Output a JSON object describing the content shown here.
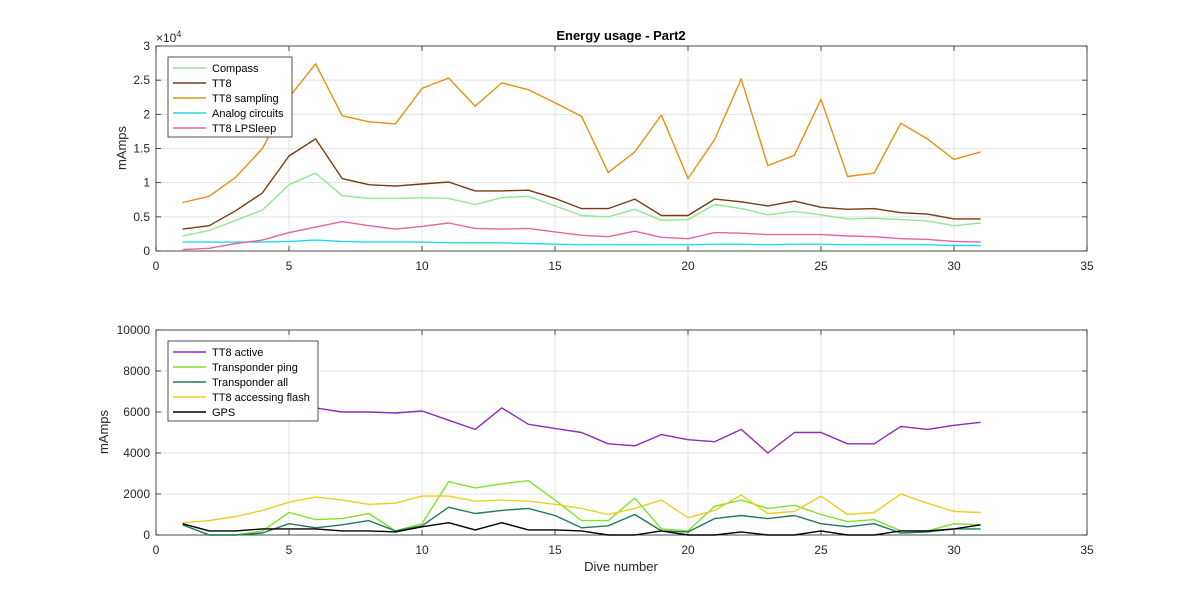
{
  "chart_data": [
    {
      "type": "line",
      "title": "Energy usage - Part2",
      "xlabel": "",
      "ylabel": "mAmps",
      "y_exponent_label": "×10",
      "y_exponent": "4",
      "xlim": [
        0,
        35
      ],
      "ylim": [
        0,
        30000
      ],
      "x_ticks": [
        0,
        5,
        10,
        15,
        20,
        25,
        30,
        35
      ],
      "y_ticks": [
        0,
        5000,
        10000,
        15000,
        20000,
        25000,
        30000
      ],
      "y_tick_labels": [
        "0",
        "0.5",
        "1",
        "1.5",
        "2",
        "2.5",
        "3"
      ],
      "grid": true,
      "legend_position": "top-left",
      "x": [
        1,
        2,
        3,
        4,
        5,
        6,
        7,
        8,
        9,
        10,
        11,
        12,
        13,
        14,
        15,
        16,
        17,
        18,
        19,
        20,
        21,
        22,
        23,
        24,
        25,
        26,
        27,
        28,
        29,
        30,
        31
      ],
      "series": [
        {
          "name": "Compass",
          "color": "#8fe88f",
          "values": [
            2200,
            3000,
            4500,
            6000,
            9700,
            11400,
            8100,
            7700,
            7700,
            7800,
            7700,
            6800,
            7800,
            8000,
            6600,
            5200,
            5000,
            6100,
            4500,
            4600,
            6800,
            6200,
            5300,
            5800,
            5300,
            4700,
            4800,
            4600,
            4400,
            3700,
            4100
          ]
        },
        {
          "name": "TT8",
          "color": "#7a3a12",
          "values": [
            3200,
            3700,
            5900,
            8500,
            13900,
            16400,
            10600,
            9700,
            9500,
            9800,
            10100,
            8800,
            8800,
            8900,
            7700,
            6200,
            6200,
            7600,
            5200,
            5200,
            7600,
            7200,
            6600,
            7300,
            6400,
            6100,
            6200,
            5600,
            5400,
            4700,
            4700
          ]
        },
        {
          "name": "TT8 sampling",
          "color": "#e8900e",
          "values": [
            7100,
            8000,
            10800,
            15000,
            22500,
            27400,
            19800,
            18900,
            18600,
            23800,
            25300,
            21200,
            24600,
            23600,
            21700,
            19700,
            11500,
            14500,
            19900,
            10600,
            16300,
            25200,
            12500,
            14000,
            22200,
            10900,
            11400,
            18700,
            16400,
            13400,
            14500
          ]
        },
        {
          "name": "Analog circuits",
          "color": "#25d9e8",
          "values": [
            1300,
            1300,
            1300,
            1300,
            1400,
            1600,
            1400,
            1300,
            1300,
            1300,
            1200,
            1200,
            1200,
            1100,
            1000,
            900,
            900,
            900,
            900,
            900,
            1000,
            1000,
            900,
            1000,
            1000,
            900,
            900,
            900,
            900,
            800,
            800
          ]
        },
        {
          "name": "TT8 LPSleep",
          "color": "#e862a8",
          "values": [
            200,
            400,
            1100,
            1600,
            2700,
            3500,
            4300,
            3700,
            3200,
            3600,
            4100,
            3300,
            3200,
            3300,
            2800,
            2300,
            2100,
            2900,
            2000,
            1800,
            2700,
            2600,
            2400,
            2400,
            2400,
            2200,
            2100,
            1800,
            1700,
            1400,
            1300
          ]
        }
      ]
    },
    {
      "type": "line",
      "title": "",
      "xlabel": "Dive number",
      "ylabel": "mAmps",
      "xlim": [
        0,
        35
      ],
      "ylim": [
        0,
        10000
      ],
      "x_ticks": [
        0,
        5,
        10,
        15,
        20,
        25,
        30,
        35
      ],
      "y_ticks": [
        0,
        2000,
        4000,
        6000,
        8000,
        10000
      ],
      "grid": true,
      "legend_position": "top-left",
      "x": [
        1,
        2,
        3,
        4,
        5,
        6,
        7,
        8,
        9,
        10,
        11,
        12,
        13,
        14,
        15,
        16,
        17,
        18,
        19,
        20,
        21,
        22,
        23,
        24,
        25,
        26,
        27,
        28,
        29,
        30,
        31
      ],
      "series": [
        {
          "name": "TT8 active",
          "color": "#8e2bb5",
          "values": [
            6200,
            6200,
            6200,
            6200,
            6200,
            6200,
            6000,
            6000,
            5950,
            6050,
            5600,
            5150,
            6200,
            5400,
            5200,
            5000,
            4450,
            4350,
            4900,
            4650,
            4550,
            5150,
            4000,
            5000,
            5000,
            4450,
            4450,
            5300,
            5150,
            5350,
            5500
          ]
        },
        {
          "name": "Transponder ping",
          "color": "#7fe22a",
          "values": [
            500,
            0,
            0,
            200,
            1100,
            750,
            800,
            1050,
            200,
            550,
            2600,
            2300,
            2500,
            2650,
            1700,
            700,
            700,
            1800,
            300,
            200,
            1400,
            1700,
            1300,
            1450,
            1000,
            650,
            750,
            200,
            200,
            550,
            500
          ]
        },
        {
          "name": "Transponder all",
          "color": "#1f7a5c",
          "values": [
            500,
            0,
            0,
            100,
            550,
            350,
            500,
            700,
            200,
            450,
            1350,
            1050,
            1200,
            1300,
            950,
            350,
            450,
            1000,
            200,
            150,
            800,
            950,
            800,
            950,
            550,
            400,
            550,
            100,
            150,
            300,
            300
          ]
        },
        {
          "name": "TT8 accessing flash",
          "color": "#f0cc22",
          "values": [
            600,
            700,
            900,
            1200,
            1600,
            1850,
            1700,
            1500,
            1550,
            1900,
            1900,
            1650,
            1700,
            1650,
            1500,
            1300,
            1000,
            1300,
            1700,
            850,
            1200,
            1950,
            1050,
            1150,
            1900,
            1000,
            1100,
            2000,
            1550,
            1150,
            1100
          ]
        },
        {
          "name": "GPS",
          "color": "#000000",
          "values": [
            550,
            200,
            200,
            300,
            300,
            300,
            200,
            200,
            150,
            400,
            600,
            250,
            600,
            250,
            250,
            200,
            0,
            0,
            200,
            0,
            0,
            150,
            0,
            0,
            200,
            0,
            0,
            200,
            200,
            300,
            500
          ]
        }
      ]
    }
  ]
}
